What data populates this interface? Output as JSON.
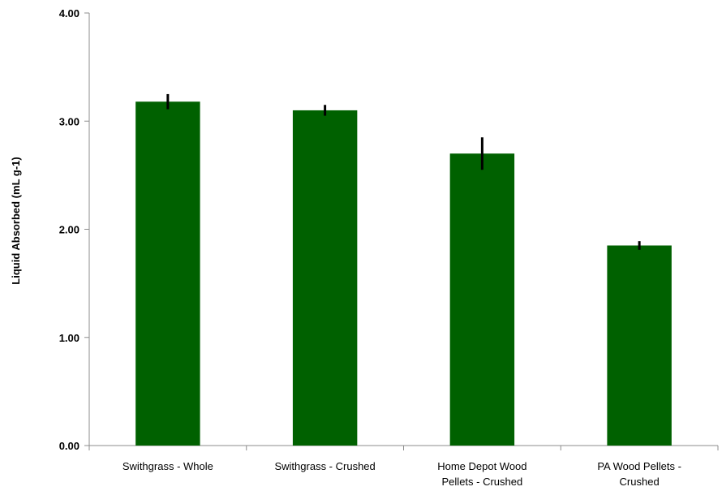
{
  "chart_data": {
    "type": "bar",
    "title": "",
    "xlabel": "",
    "ylabel": "Liquid Absorbed (mL g-1)",
    "ylim": [
      0,
      4
    ],
    "y_ticks": [
      "0.00",
      "1.00",
      "2.00",
      "3.00",
      "4.00"
    ],
    "categories": [
      [
        "Swithgrass - Whole"
      ],
      [
        "Swithgrass - Crushed"
      ],
      [
        "Home Depot Wood",
        "Pellets - Crushed"
      ],
      [
        "PA Wood Pellets -",
        "Crushed"
      ]
    ],
    "values": [
      3.18,
      3.1,
      2.7,
      1.85
    ],
    "errors": [
      0.07,
      0.05,
      0.15,
      0.04
    ],
    "bar_color": "#006100",
    "error_color": "#000000",
    "grid": false,
    "legend": "none"
  }
}
